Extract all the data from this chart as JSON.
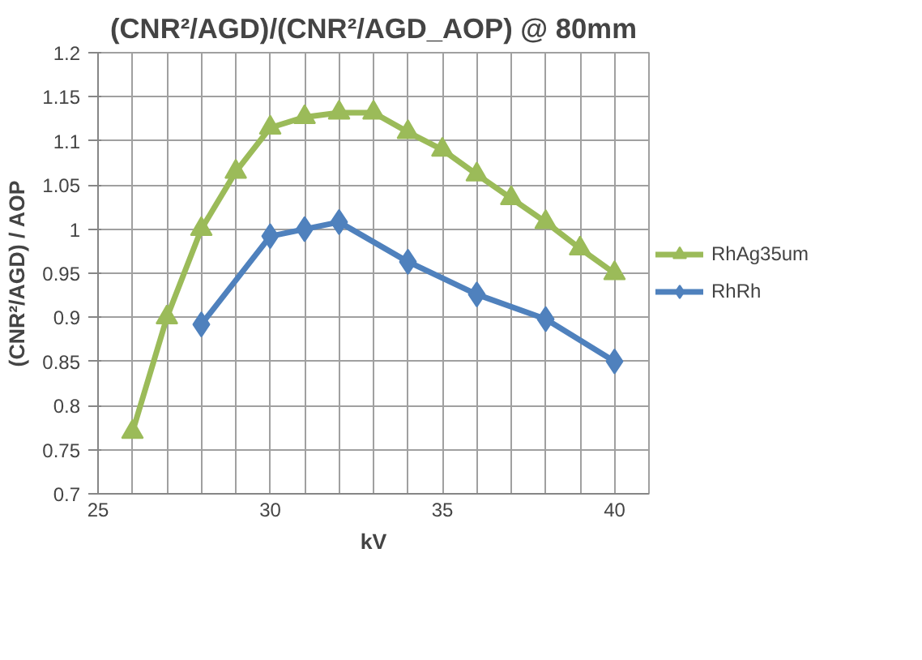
{
  "chart_data": {
    "type": "line",
    "title": "(CNR²/AGD)/(CNR²/AGD_AOP) @ 80mm",
    "xlabel": "kV",
    "ylabel": "(CNR²/AGD) / AOP",
    "xlim": [
      25,
      41
    ],
    "xticks": [
      25,
      {
        "value": 26,
        "label": null
      },
      {
        "value": 27,
        "label": null
      },
      {
        "value": 28,
        "label": null
      },
      {
        "value": 29,
        "label": null
      },
      30,
      {
        "value": 31,
        "label": null
      },
      {
        "value": 32,
        "label": null
      },
      {
        "value": 33,
        "label": null
      },
      {
        "value": 34,
        "label": null
      },
      35,
      {
        "value": 36,
        "label": null
      },
      {
        "value": 37,
        "label": null
      },
      {
        "value": 38,
        "label": null
      },
      {
        "value": 39,
        "label": null
      },
      40,
      {
        "value": 41,
        "label": null
      }
    ],
    "ylim": [
      0.7,
      1.2
    ],
    "yticks": [
      0.7,
      0.75,
      0.8,
      0.85,
      0.9,
      0.95,
      1,
      1.05,
      1.1,
      1.15,
      1.2
    ],
    "grid": true,
    "legend": "right",
    "line_style": "solid",
    "series": [
      {
        "name": "RhAg35um",
        "color": "#9bbb59",
        "marker": "triangle",
        "x": [
          26,
          27,
          28,
          29,
          30,
          31,
          32,
          33,
          34,
          35,
          36,
          37,
          38,
          39,
          40
        ],
        "values": [
          0.77,
          0.9,
          1.0,
          1.065,
          1.115,
          1.127,
          1.132,
          1.132,
          1.11,
          1.09,
          1.062,
          1.035,
          1.008,
          0.978,
          0.95
        ]
      },
      {
        "name": "RhRh",
        "color": "#4f81bd",
        "marker": "diamond",
        "x": [
          28,
          30,
          31,
          32,
          34,
          36,
          38,
          40
        ],
        "values": [
          0.892,
          0.992,
          1.0,
          1.008,
          0.963,
          0.926,
          0.898,
          0.85
        ]
      }
    ]
  }
}
